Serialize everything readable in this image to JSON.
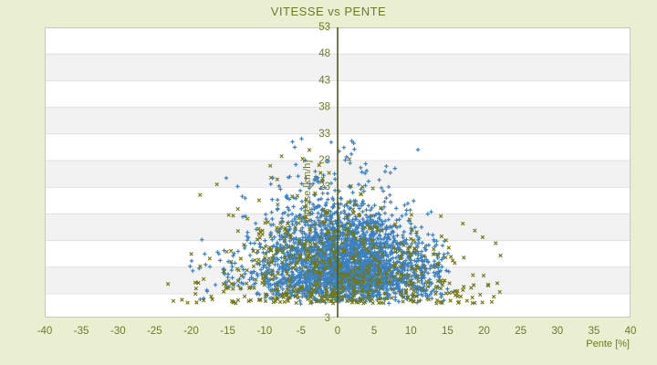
{
  "chart_data": {
    "type": "scatter",
    "title": "VITESSE vs PENTE",
    "xlabel": "Pente [%]",
    "ylabel": "Vitesse [km/h]",
    "xlim": [
      -40,
      40
    ],
    "ylim": [
      -1.45,
      53
    ],
    "x_ticks": [
      -40,
      -35,
      -30,
      -25,
      -20,
      -15,
      -10,
      -5,
      0,
      5,
      10,
      15,
      20,
      25,
      30,
      35,
      40
    ],
    "y_ticks": [
      53,
      48,
      43,
      38,
      33,
      28,
      23,
      18,
      13,
      8,
      3
    ],
    "bottom_y_label_at_plot_edge": 3,
    "grid": "horizontal-bands",
    "legend": "none",
    "zero_line_x": 0,
    "summary": "Dense triangular point cloud centered slightly right of pente 0%; speeds from ~1 to ~33 km/h, widest spread (-23% to +24%) at low speeds, narrowing to an apex near 0% at ~32 km/h. Blue plus-markers form the dense core; olive x-markers are sparser and spread wider.",
    "series": [
      {
        "name": "serie-bleue",
        "marker": "plus",
        "color": "#3a80c2",
        "count": 2900,
        "seed": 20240817,
        "dist": {
          "kind": "cone",
          "y_min": 1.0,
          "y_max": 32.5,
          "y_sigmas": [
            {
              "w": 0.78,
              "s": 6.0
            },
            {
              "w": 0.22,
              "s": 10.2
            }
          ],
          "mu0": 2.3,
          "mu_slope": -3.6,
          "sig0": 6.4,
          "sig_slope": -3.5,
          "wide_frac": 0.13,
          "wide_mult": 1.9,
          "x_min": -20.5,
          "x_max": 15.2
        }
      },
      {
        "name": "serie-olive",
        "marker": "x",
        "color": "#72770e",
        "count": 640,
        "seed": 99173,
        "dist": {
          "kind": "mix",
          "parts": [
            {
              "w": 0.66,
              "kind": "cone",
              "y_min": 1.0,
              "y_max": 31.5,
              "y_sigmas": [
                {
                  "w": 0.75,
                  "s": 7.2
                },
                {
                  "w": 0.25,
                  "s": 11.0
                }
              ],
              "mu0": 0.6,
              "mu_slope": -4.2,
              "sig0": 8.4,
              "sig_slope": -3.4,
              "wide_frac": 0.18,
              "wide_mult": 1.6,
              "x_min": -23.2,
              "x_max": 23.8
            },
            {
              "w": 0.34,
              "kind": "floor",
              "y_min": 1.2,
              "y_scale": 2.6,
              "y_max": 12.0,
              "x_sigma": 11.5,
              "x_min": -23.2,
              "x_max": 23.8
            }
          ]
        }
      }
    ]
  },
  "colors": {
    "background": "#e9efd0",
    "text_olive": "#6d7a28",
    "zero_line": "#4d5a15",
    "band_white": "#ffffff",
    "band_gray": "#f2f2f2",
    "gridline": "#e0e0e0",
    "plot_border": "#c6cabc",
    "series_blue": "#3a80c2",
    "series_olive": "#72770e"
  }
}
